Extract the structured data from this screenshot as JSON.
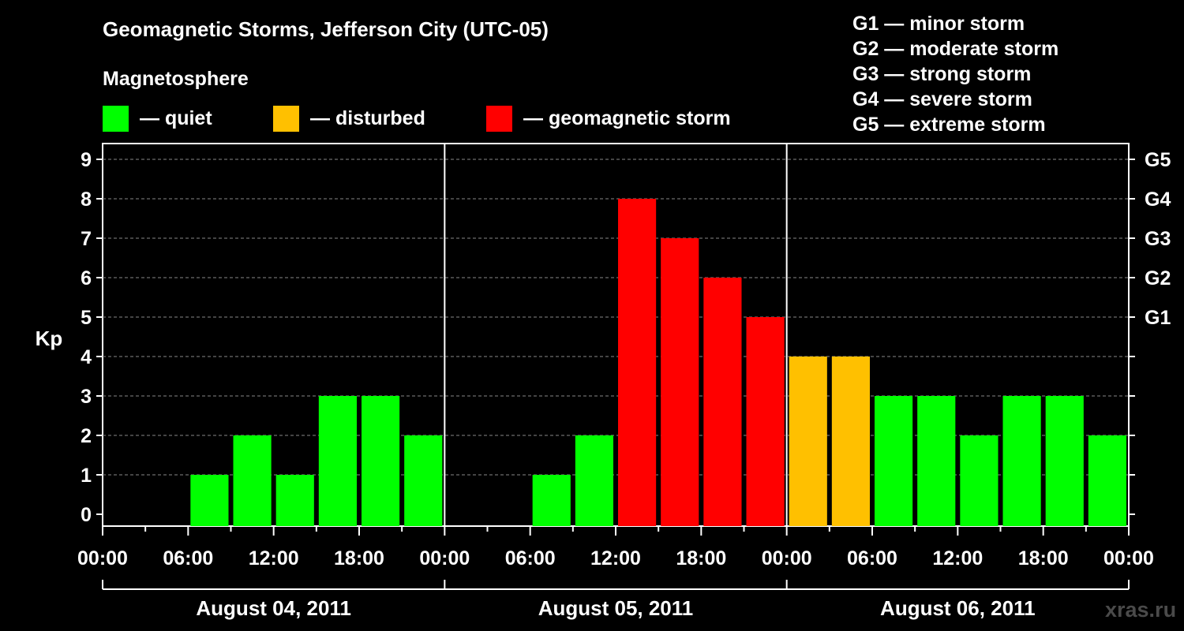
{
  "title": "Geomagnetic Storms, Jefferson City (UTC-05)",
  "subtitle": "Magnetosphere",
  "legend": [
    {
      "label": "— quiet",
      "color": "#00ff00"
    },
    {
      "label": "— disturbed",
      "color": "#ffc000"
    },
    {
      "label": "— geomagnetic storm",
      "color": "#ff0000"
    }
  ],
  "g_scale": [
    "G1 — minor storm",
    "G2 — moderate storm",
    "G3 — strong storm",
    "G4 — severe storm",
    "G5 — extreme storm"
  ],
  "watermark": "xras.ru",
  "chart_data": {
    "type": "bar",
    "ylabel": "Kp",
    "ylim": [
      0,
      9
    ],
    "yticks": [
      0,
      1,
      2,
      3,
      4,
      5,
      6,
      7,
      8,
      9
    ],
    "right_axis_labels": [
      {
        "kp": 5,
        "label": "G1"
      },
      {
        "kp": 6,
        "label": "G2"
      },
      {
        "kp": 7,
        "label": "G3"
      },
      {
        "kp": 8,
        "label": "G4"
      },
      {
        "kp": 9,
        "label": "G5"
      }
    ],
    "xtick_labels": [
      "00:00",
      "06:00",
      "12:00",
      "18:00",
      "00:00",
      "06:00",
      "12:00",
      "18:00",
      "00:00",
      "06:00",
      "12:00",
      "18:00",
      "00:00"
    ],
    "days": [
      "August 04, 2011",
      "August 05, 2011",
      "August 06, 2011"
    ],
    "interval_hours": 3,
    "values": [
      0,
      0,
      1,
      2,
      1,
      3,
      3,
      2,
      0,
      0,
      1,
      2,
      8,
      7,
      6,
      5,
      4,
      4,
      3,
      3,
      2,
      3,
      3,
      2
    ],
    "thresholds": {
      "quiet_max": 3,
      "disturbed_max": 4
    },
    "colors": {
      "quiet": "#00ff00",
      "disturbed": "#ffc000",
      "storm": "#ff0000"
    },
    "grid": "dashed horizontal at each Kp"
  }
}
